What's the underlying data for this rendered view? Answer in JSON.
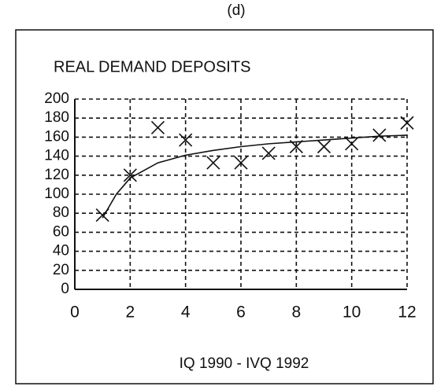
{
  "chart_data": {
    "type": "scatter",
    "panel_label": "(d)",
    "title": "REAL DEMAND DEPOSITS",
    "x_label": "IQ 1990 - IVQ 1992",
    "xlim": [
      0,
      12
    ],
    "xticks": [
      0,
      2,
      4,
      6,
      8,
      10,
      12
    ],
    "ylim": [
      0,
      200
    ],
    "yticks": [
      0,
      20,
      40,
      60,
      80,
      100,
      120,
      140,
      160,
      180,
      200
    ],
    "grid": true,
    "series": [
      {
        "marker": "x",
        "color": "#111111",
        "x": [
          1,
          2,
          3,
          4,
          5,
          6,
          7,
          8,
          9,
          10,
          11,
          12
        ],
        "values": [
          78,
          120,
          170,
          157,
          133,
          133,
          143,
          150,
          150,
          153,
          162,
          175
        ]
      },
      {
        "marker": "line",
        "color": "#111111",
        "x": [
          1,
          1.5,
          2,
          3,
          4,
          5,
          6,
          7,
          8,
          9,
          10,
          11,
          12
        ],
        "values": [
          75,
          100,
          117,
          133,
          141,
          146,
          150,
          153,
          155,
          157,
          159,
          161,
          162
        ]
      }
    ]
  }
}
